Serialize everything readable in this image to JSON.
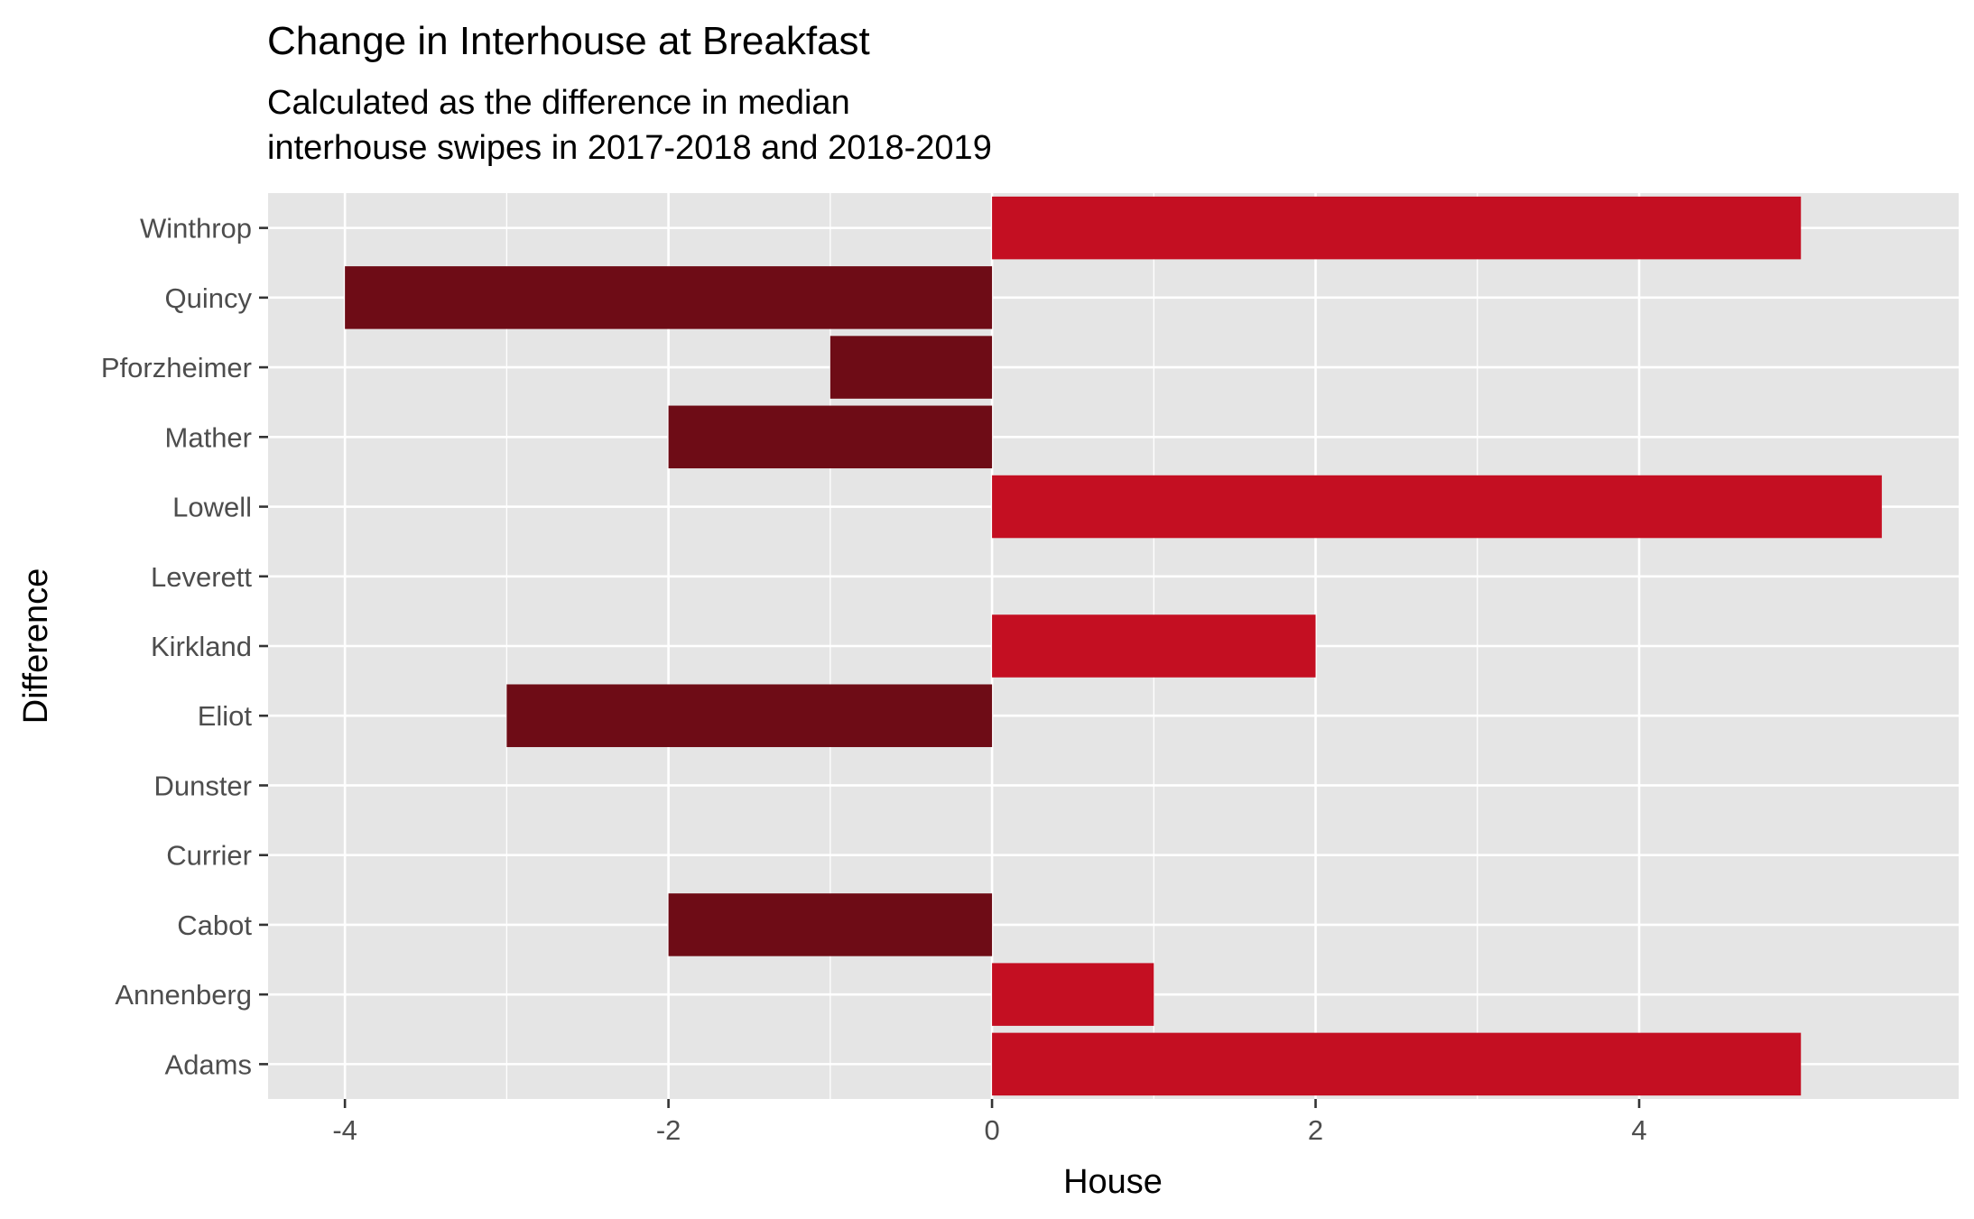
{
  "chart_data": {
    "type": "bar",
    "orientation": "horizontal",
    "title": "Change in Interhouse at Breakfast",
    "subtitle_lines": [
      "Calculated as the difference in median",
      "interhouse swipes in 2017-2018 and 2018-2019"
    ],
    "xlabel": "House",
    "ylabel": "Difference",
    "categories": [
      "Adams",
      "Annenberg",
      "Cabot",
      "Currier",
      "Dunster",
      "Eliot",
      "Kirkland",
      "Leverett",
      "Lowell",
      "Mather",
      "Pforzheimer",
      "Quincy",
      "Winthrop"
    ],
    "values": [
      5,
      1,
      -2,
      0,
      0,
      -3,
      2,
      0,
      5.5,
      -2,
      -1,
      -4,
      5
    ],
    "xlim": [
      -4.475,
      5.975
    ],
    "x_ticks": [
      -4,
      -2,
      0,
      2,
      4
    ],
    "x_tick_labels": [
      "-4",
      "-2",
      "0",
      "2",
      "4"
    ],
    "grid": true,
    "colors": {
      "positive": "#c40f22",
      "negative": "#6e0c16",
      "panel": "#e5e5e5",
      "grid": "#ffffff"
    }
  }
}
